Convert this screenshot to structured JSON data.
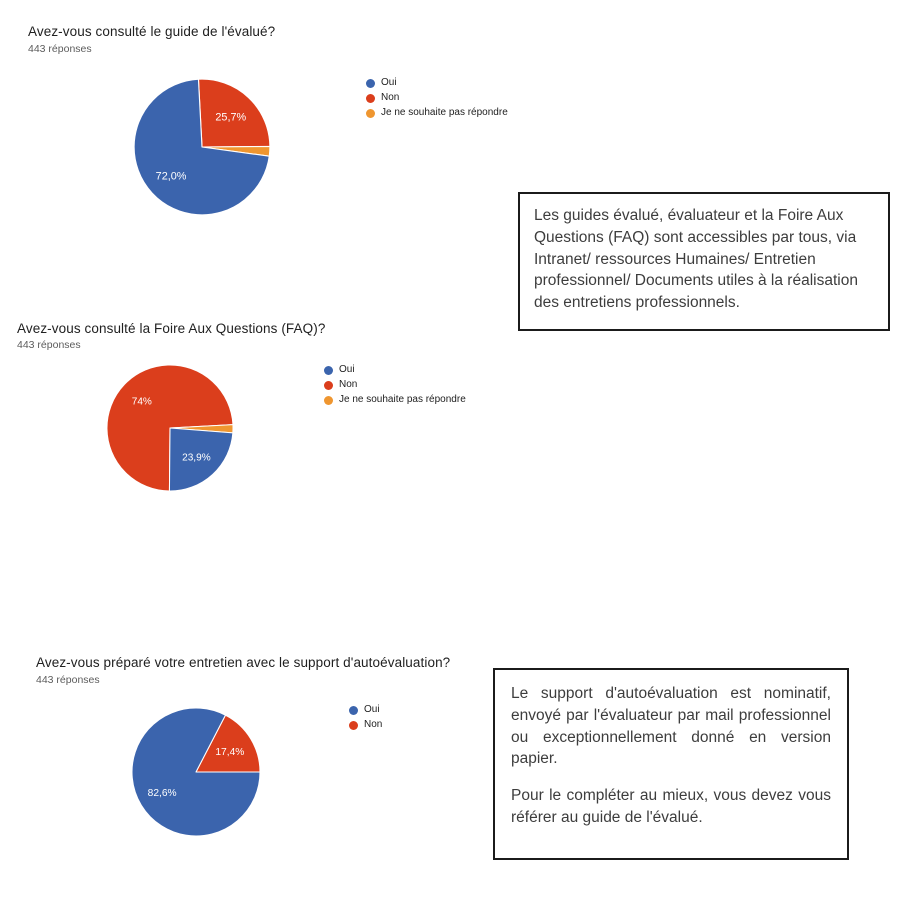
{
  "page": {
    "background": "#ffffff"
  },
  "colors": {
    "oui_blue": "#3B64AD",
    "non_red": "#DB3E1C",
    "refuse_orange": "#EF9630",
    "title_text": "#212121",
    "subtitle_text": "#5C5C5C",
    "box_border": "#1B1B1B",
    "box_text": "#3D3D3D",
    "slice_label_white": "#FFFFFF"
  },
  "charts": [
    {
      "title": "Avez-vous consulté le guide de l'évalué?",
      "responses": "443 réponses",
      "legend": [
        {
          "label": "Oui",
          "color": "#3B64AD"
        },
        {
          "label": "Non",
          "color": "#DB3E1C"
        },
        {
          "label": "Je ne souhaite pas répondre",
          "color": "#EF9630"
        }
      ],
      "segments": [
        {
          "name": "Non",
          "color": "#DB3E1C",
          "start": -3,
          "end": 89.5,
          "label": "25,7%"
        },
        {
          "name": "Je ne souhaite pas répondre",
          "color": "#EF9630",
          "start": 89.5,
          "end": 97.8,
          "label": null
        },
        {
          "name": "Oui",
          "color": "#3B64AD",
          "start": 97.8,
          "end": 357,
          "label": "72,0%"
        }
      ]
    },
    {
      "title": "Avez-vous consulté la Foire Aux Questions (FAQ)?",
      "responses": "443 réponses",
      "legend": [
        {
          "label": "Oui",
          "color": "#3B64AD"
        },
        {
          "label": "Non",
          "color": "#DB3E1C"
        },
        {
          "label": "Je ne souhaite pas répondre",
          "color": "#EF9630"
        }
      ],
      "segments": [
        {
          "name": "Non",
          "color": "#DB3E1C",
          "start": 180.5,
          "end": 446.9,
          "label": "74%"
        },
        {
          "name": "Je ne souhaite pas répondre",
          "color": "#EF9630",
          "start": 86.9,
          "end": 94.4,
          "label": null
        },
        {
          "name": "Oui",
          "color": "#3B64AD",
          "start": 94.4,
          "end": 180.5,
          "label": "23,9%"
        }
      ]
    },
    {
      "title": "Avez-vous préparé votre entretien avec le support d'autoévaluation?",
      "responses": "443 réponses",
      "legend": [
        {
          "label": "Oui",
          "color": "#3B64AD"
        },
        {
          "label": "Non",
          "color": "#DB3E1C"
        }
      ],
      "segments": [
        {
          "name": "Non",
          "color": "#DB3E1C",
          "start": 27.4,
          "end": 90,
          "label": "17,4%"
        },
        {
          "name": "Oui",
          "color": "#3B64AD",
          "start": 90,
          "end": 387.4,
          "label": "82,6%"
        }
      ]
    }
  ],
  "chart_data": [
    {
      "type": "pie",
      "title": "Avez-vous consulté le guide de l'évalué?",
      "subtitle": "443 réponses",
      "categories": [
        "Oui",
        "Non",
        "Je ne souhaite pas répondre"
      ],
      "values": [
        72.0,
        25.7,
        2.3
      ],
      "data_labels": [
        "72,0%",
        "25,7%",
        ""
      ],
      "legend_position": "right"
    },
    {
      "type": "pie",
      "title": "Avez-vous consulté la Foire Aux Questions (FAQ)?",
      "subtitle": "443 réponses",
      "categories": [
        "Oui",
        "Non",
        "Je ne souhaite pas répondre"
      ],
      "values": [
        23.9,
        74.0,
        2.1
      ],
      "data_labels": [
        "23,9%",
        "74%",
        ""
      ],
      "legend_position": "right"
    },
    {
      "type": "pie",
      "title": "Avez-vous préparé votre entretien avec le support d'autoévaluation?",
      "subtitle": "443 réponses",
      "categories": [
        "Oui",
        "Non"
      ],
      "values": [
        82.6,
        17.4
      ],
      "data_labels": [
        "82,6%",
        "17,4%"
      ],
      "legend_position": "right"
    }
  ],
  "text_boxes": [
    {
      "paragraphs": [
        "Les guides évalué, évaluateur et la Foire Aux Questions (FAQ) sont accessibles par tous, via Intranet/ ressources Humaines/ Entretien professionnel/ Documents utiles à la réalisation des entretiens professionnels."
      ]
    },
    {
      "paragraphs": [
        "Le support d'autoévaluation est nominatif, envoyé par l'évaluateur par mail professionnel ou exceptionnellement donné en version papier.",
        "Pour le compléter au mieux, vous devez vous référer au guide de l'évalué."
      ]
    }
  ]
}
